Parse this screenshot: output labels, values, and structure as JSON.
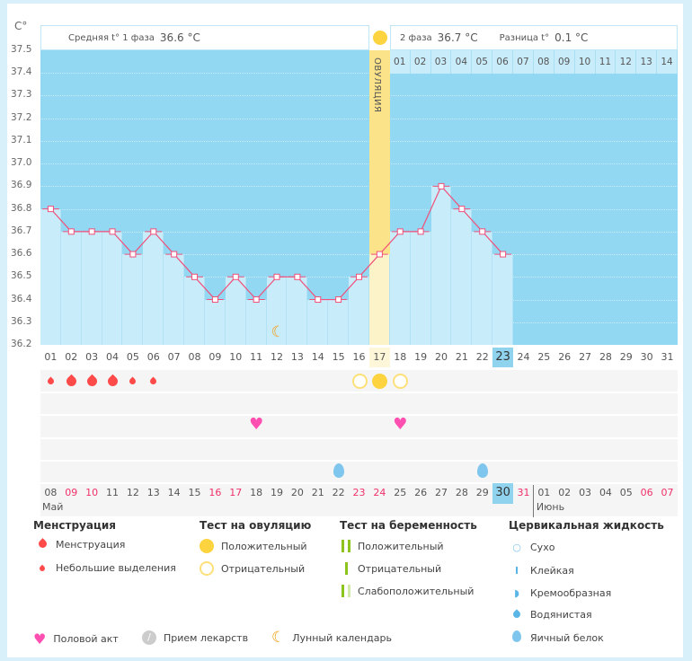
{
  "axis": {
    "unit": "C°",
    "ticks": [
      "37.5",
      "37.4",
      "37.3",
      "37.2",
      "37.1",
      "37.0",
      "36.9",
      "36.8",
      "36.7",
      "36.6",
      "36.5",
      "36.4",
      "36.3",
      "36.2"
    ]
  },
  "header": {
    "phase1_label": "Средняя t° 1 фаза",
    "phase1_value": "36.6 °C",
    "phase2_label": "2 фаза",
    "phase2_value": "36.7 °C",
    "diff_label": "Разница t°",
    "diff_value": "0.1 °C",
    "ovulation_label": "ОВУЛЯЦИЯ"
  },
  "phase2_days": [
    "01",
    "02",
    "03",
    "04",
    "05",
    "06",
    "07",
    "08",
    "09",
    "10",
    "11",
    "12",
    "13",
    "14"
  ],
  "chart_data": {
    "type": "line",
    "title": "",
    "ylabel": "C°",
    "ylim": [
      36.2,
      37.5
    ],
    "x": [
      "01",
      "02",
      "03",
      "04",
      "05",
      "06",
      "07",
      "08",
      "09",
      "10",
      "11",
      "12",
      "13",
      "14",
      "15",
      "16",
      "17",
      "18",
      "19",
      "20",
      "21",
      "22",
      "23"
    ],
    "values": [
      36.8,
      36.7,
      36.7,
      36.7,
      36.6,
      36.7,
      36.6,
      36.5,
      36.4,
      36.5,
      36.4,
      36.5,
      36.5,
      36.4,
      36.4,
      36.5,
      36.6,
      36.7,
      36.7,
      36.9,
      36.8,
      36.7,
      36.6
    ],
    "ovulation_day": 17
  },
  "cycle_days": [
    "01",
    "02",
    "03",
    "04",
    "05",
    "06",
    "07",
    "08",
    "09",
    "10",
    "11",
    "12",
    "13",
    "14",
    "15",
    "16",
    "17",
    "18",
    "19",
    "20",
    "21",
    "22",
    "23",
    "24",
    "25",
    "26",
    "27",
    "28",
    "29",
    "30",
    "31"
  ],
  "current_cycle_day": 23,
  "dates": [
    {
      "d": "08"
    },
    {
      "d": "09",
      "w": 1
    },
    {
      "d": "10",
      "w": 1
    },
    {
      "d": "11"
    },
    {
      "d": "12"
    },
    {
      "d": "13"
    },
    {
      "d": "14"
    },
    {
      "d": "15"
    },
    {
      "d": "16",
      "w": 1
    },
    {
      "d": "17",
      "w": 1
    },
    {
      "d": "18"
    },
    {
      "d": "19"
    },
    {
      "d": "20"
    },
    {
      "d": "21"
    },
    {
      "d": "22"
    },
    {
      "d": "23",
      "w": 1
    },
    {
      "d": "24",
      "w": 1
    },
    {
      "d": "25"
    },
    {
      "d": "26"
    },
    {
      "d": "27"
    },
    {
      "d": "28"
    },
    {
      "d": "29"
    },
    {
      "d": "30",
      "today": 1
    },
    {
      "d": "31",
      "w": 1
    },
    {
      "d": "01"
    },
    {
      "d": "02"
    },
    {
      "d": "03"
    },
    {
      "d": "04"
    },
    {
      "d": "05"
    },
    {
      "d": "06",
      "w": 1
    },
    {
      "d": "07",
      "w": 1
    }
  ],
  "months": [
    "Май",
    "Июнь"
  ],
  "marks": {
    "menstruation": {
      "1": "s",
      "2": "b",
      "3": "b",
      "4": "b",
      "5": "s",
      "6": "s"
    },
    "ovulation_test": {
      "16": "neg",
      "17": "pos",
      "18": "neg"
    },
    "intercourse": [
      11,
      18
    ],
    "cervical_egg_white": [
      15,
      22
    ],
    "lunar": [
      12
    ]
  },
  "colors": {
    "plot_bg": "#92d8f2",
    "bar": "#c9ecfb",
    "ovulation": "#fbe38a",
    "line": "#f0507a",
    "menstruation": "#ff4a4a",
    "heart": "#ff4fb0",
    "cervical": "#7ec6ee",
    "moon": "#f39c12"
  },
  "legend": {
    "menstruation": {
      "title": "Менструация",
      "items": [
        "Менструация",
        "Небольшие выделения"
      ]
    },
    "ovulation": {
      "title": "Тест на овуляцию",
      "items": [
        "Положительный",
        "Отрицательный"
      ]
    },
    "pregnancy": {
      "title": "Тест на беременность",
      "items": [
        "Положительный",
        "Отрицательный",
        "Слабоположительный"
      ]
    },
    "cervical": {
      "title": "Цервикальная жидкость",
      "items": [
        "Сухо",
        "Клейкая",
        "Кремообразная",
        "Водянистая",
        "Яичный белок"
      ]
    },
    "other": [
      "Половой акт",
      "Прием лекарств",
      "Лунный календарь"
    ]
  }
}
